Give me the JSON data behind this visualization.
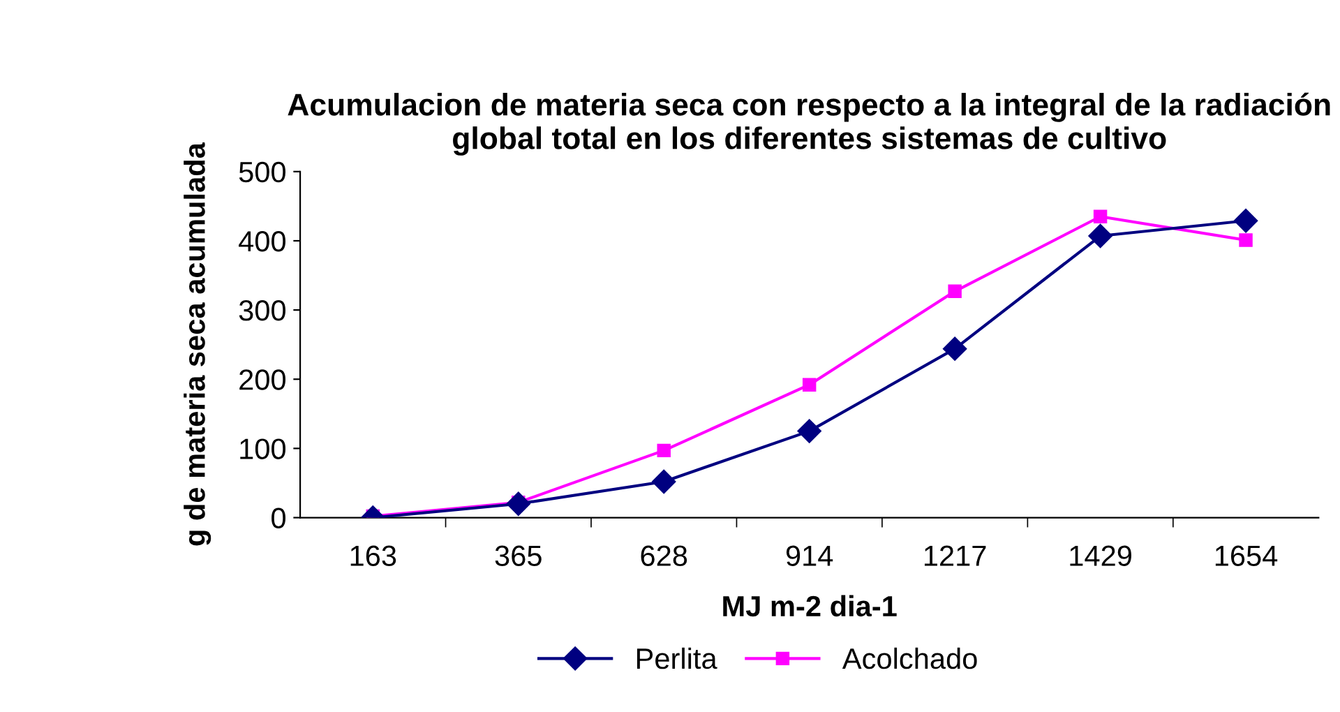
{
  "chart_data": {
    "type": "line",
    "title": "Acumulacion de materia seca con respecto a la integral de la radiación global total en los diferentes sistemas de cultivo",
    "xlabel": "MJ m-2 dia-1",
    "ylabel": "g de materia seca acumulada",
    "categories": [
      "163",
      "365",
      "628",
      "914",
      "1217",
      "1429",
      "1654"
    ],
    "series": [
      {
        "name": "Perlita",
        "color": "#000080",
        "marker": "diamond",
        "values": [
          0,
          20,
          52,
          125,
          244,
          407,
          429
        ]
      },
      {
        "name": "Acolchado",
        "color": "#ff00ff",
        "marker": "square",
        "values": [
          2,
          22,
          97,
          192,
          327,
          435,
          401
        ]
      }
    ],
    "ylim": [
      0,
      500
    ],
    "yticks": [
      0,
      100,
      200,
      300,
      400,
      500
    ],
    "grid": false,
    "legend": "bottom"
  }
}
